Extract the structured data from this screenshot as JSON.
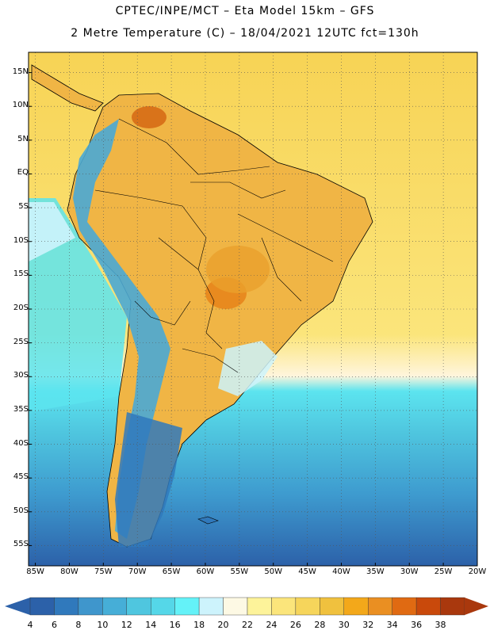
{
  "header": {
    "line1": "CPTEC/INPE/MCT –  Eta Model 15km – GFS",
    "line2": "2 Metre Temperature (C) – 18/04/2021 12UTC fct=130h"
  },
  "map": {
    "region": "South America",
    "lon_range": [
      -86,
      -20
    ],
    "lat_range": [
      -58,
      18
    ],
    "lat_labels": [
      "15N",
      "10N",
      "5N",
      "EQ",
      "5S",
      "10S",
      "15S",
      "20S",
      "25S",
      "30S",
      "35S",
      "40S",
      "45S",
      "50S",
      "55S"
    ],
    "lat_values": [
      15,
      10,
      5,
      0,
      -5,
      -10,
      -15,
      -20,
      -25,
      -30,
      -35,
      -40,
      -45,
      -50,
      -55
    ],
    "lon_labels": [
      "85W",
      "80W",
      "75W",
      "70W",
      "65W",
      "60W",
      "55W",
      "50W",
      "45W",
      "40W",
      "35W",
      "30W",
      "25W",
      "20W"
    ],
    "lon_values": [
      -85,
      -80,
      -75,
      -70,
      -65,
      -60,
      -55,
      -50,
      -45,
      -40,
      -35,
      -30,
      -25,
      -20
    ],
    "ocean_bands": [
      {
        "temp_c": 26,
        "color": "#f7d355"
      },
      {
        "temp_c": 24,
        "color": "#fbe97c"
      },
      {
        "temp_c": 22,
        "color": "#fff5dc"
      },
      {
        "temp_c": 16,
        "color": "#5ce4ef"
      },
      {
        "temp_c": 14,
        "color": "#4fd3e5"
      },
      {
        "temp_c": 12,
        "color": "#4cbfdc"
      },
      {
        "temp_c": 10,
        "color": "#3e9bcf"
      },
      {
        "temp_c": 8,
        "color": "#3079bc"
      }
    ]
  },
  "colorbar": {
    "labels": [
      "4",
      "6",
      "8",
      "10",
      "12",
      "14",
      "16",
      "18",
      "20",
      "22",
      "24",
      "26",
      "28",
      "30",
      "32",
      "34",
      "36",
      "38"
    ],
    "colors": [
      "#2c61a9",
      "#3079bc",
      "#3f96cc",
      "#46aed7",
      "#4fc6df",
      "#55d7e8",
      "#64f2f8",
      "#cdf3fc",
      "#fdf9e4",
      "#fdf39a",
      "#fbe57b",
      "#f6d55b",
      "#f0c13e",
      "#f3a81a",
      "#ea8f22",
      "#e06a12",
      "#c9490b",
      "#a9380d"
    ]
  },
  "colors": {
    "land_warm": "#f0b545",
    "land_hot": "#d9731a",
    "andes_cool": "#4aa8d4",
    "border": "#000000"
  }
}
